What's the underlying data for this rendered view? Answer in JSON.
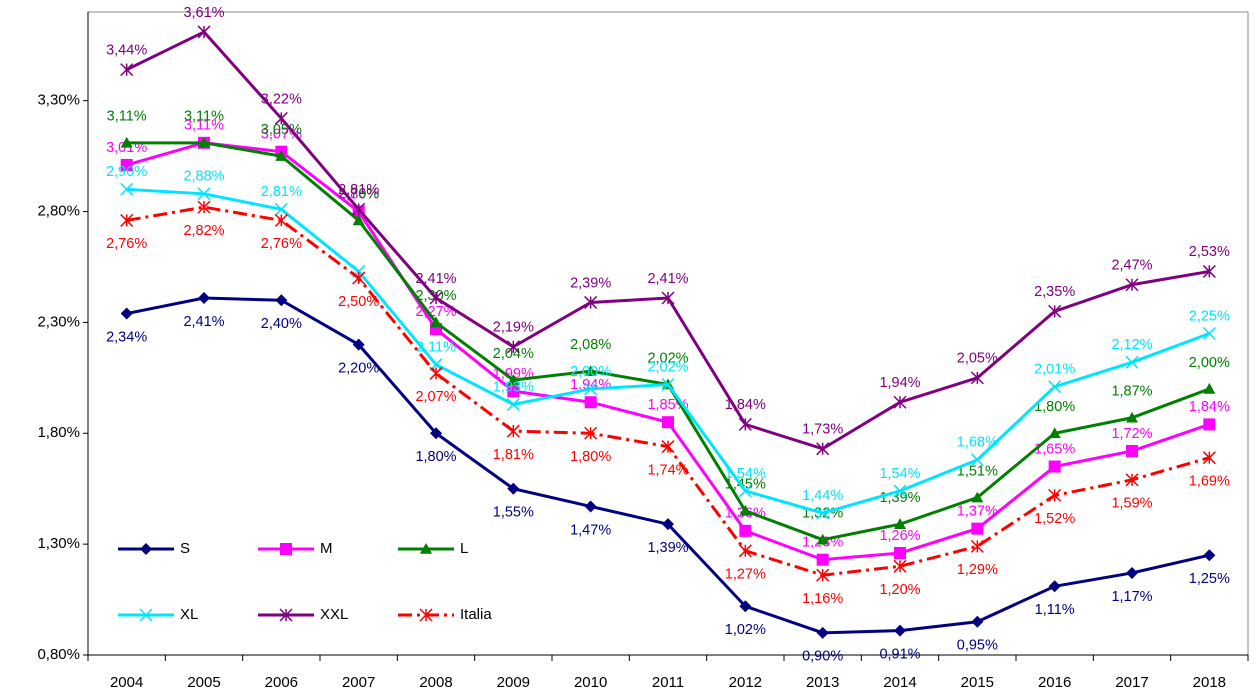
{
  "chart_data": {
    "type": "line",
    "categories": [
      "2004",
      "2005",
      "2006",
      "2007",
      "2008",
      "2009",
      "2010",
      "2011",
      "2012",
      "2013",
      "2014",
      "2015",
      "2016",
      "2017",
      "2018"
    ],
    "ylim": [
      0.8,
      3.7
    ],
    "yticks": [
      {
        "value": 0.8,
        "label": "0,80%"
      },
      {
        "value": 1.3,
        "label": "1,30%"
      },
      {
        "value": 1.8,
        "label": "1,80%"
      },
      {
        "value": 2.3,
        "label": "2,30%"
      },
      {
        "value": 2.8,
        "label": "2,80%"
      },
      {
        "value": 3.3,
        "label": "3,30%"
      }
    ],
    "legend": "lower left",
    "series": [
      {
        "name": "S",
        "color": "#000080",
        "marker": "diamond",
        "dash": "solid",
        "values": [
          2.34,
          2.41,
          2.4,
          2.2,
          1.8,
          1.55,
          1.47,
          1.39,
          1.02,
          0.9,
          0.91,
          0.95,
          1.11,
          1.17,
          1.25
        ],
        "value_labels": [
          "2,34%",
          "2,41%",
          "2,40%",
          "2,20%",
          "1,80%",
          "1,55%",
          "1,47%",
          "1,39%",
          "1,02%",
          "0,90%",
          "0,91%",
          "0,95%",
          "1,11%",
          "1,17%",
          "1,25%"
        ]
      },
      {
        "name": "M",
        "color": "#ff00ff",
        "marker": "square",
        "dash": "solid",
        "values": [
          3.01,
          3.11,
          3.07,
          2.8,
          2.27,
          1.99,
          1.94,
          1.85,
          1.36,
          1.23,
          1.26,
          1.37,
          1.65,
          1.72,
          1.84
        ],
        "value_labels": [
          "3,01%",
          "3,11%",
          "3,07%",
          "2,80%",
          "2,27%",
          "1,99%",
          "1,94%",
          "1,85%",
          "1,36%",
          "1,23%",
          "1,26%",
          "1,37%",
          "1,65%",
          "1,72%",
          "1,84%"
        ]
      },
      {
        "name": "L",
        "color": "#008000",
        "marker": "triangle",
        "dash": "solid",
        "values": [
          3.11,
          3.11,
          3.05,
          2.76,
          2.3,
          2.04,
          2.08,
          2.02,
          1.45,
          1.32,
          1.39,
          1.51,
          1.8,
          1.87,
          2.0
        ],
        "value_labels": [
          "3,11%",
          "3,11%",
          "3,05%",
          "2,76%",
          "2,30%",
          "2,04%",
          "2,08%",
          "2,02%",
          "1,45%",
          "1,32%",
          "1,39%",
          "1,51%",
          "1,80%",
          "1,87%",
          "2,00%"
        ]
      },
      {
        "name": "XL",
        "color": "#00e5ff",
        "marker": "x",
        "dash": "solid",
        "values": [
          2.9,
          2.88,
          2.81,
          2.53,
          2.11,
          1.93,
          2.0,
          2.02,
          1.54,
          1.44,
          1.54,
          1.68,
          2.01,
          2.12,
          2.25
        ],
        "value_labels": [
          "2,90%",
          "2,88%",
          "2,81%",
          null,
          "2,11%",
          "1,93%",
          "2,00%",
          "2,02%",
          "1,54%",
          "1,44%",
          "1,54%",
          "1,68%",
          "2,01%",
          "2,12%",
          "2,25%"
        ]
      },
      {
        "name": "XXL",
        "color": "#800080",
        "marker": "star",
        "dash": "solid",
        "values": [
          3.44,
          3.61,
          3.22,
          2.81,
          2.41,
          2.19,
          2.39,
          2.41,
          1.84,
          1.73,
          1.94,
          2.05,
          2.35,
          2.47,
          2.53
        ],
        "value_labels": [
          "3,44%",
          "3,61%",
          "3,22%",
          "2,81%",
          "2,41%",
          "2,19%",
          "2,39%",
          "2,41%",
          "1,84%",
          "1,73%",
          "1,94%",
          "2,05%",
          "2,35%",
          "2,47%",
          "2,53%"
        ]
      },
      {
        "name": "Italia",
        "color": "#ff0000",
        "marker": "star",
        "dash": "dashdot",
        "values": [
          2.76,
          2.82,
          2.76,
          2.5,
          2.07,
          1.81,
          1.8,
          1.74,
          1.27,
          1.16,
          1.2,
          1.29,
          1.52,
          1.59,
          1.69
        ],
        "value_labels": [
          "2,76%",
          "2,82%",
          "2,76%",
          "2,50%",
          "2,07%",
          "1,81%",
          "1,80%",
          "1,74%",
          "1,27%",
          "1,16%",
          "1,20%",
          "1,29%",
          "1,52%",
          "1,59%",
          "1,69%"
        ]
      }
    ]
  }
}
